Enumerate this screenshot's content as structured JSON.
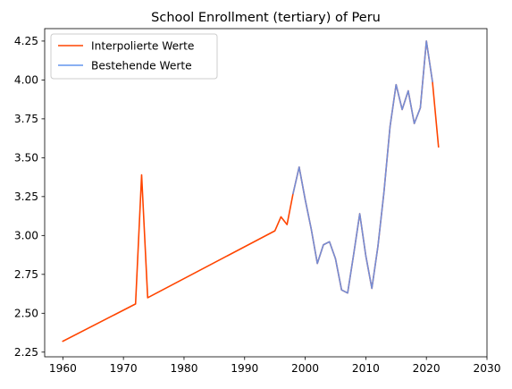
{
  "chart_data": {
    "type": "line",
    "title": "School Enrollment (tertiary) of Peru",
    "xlabel": "",
    "ylabel": "",
    "xlim": [
      1957,
      2030
    ],
    "ylim": [
      2.22,
      4.33
    ],
    "xticks": [
      1960,
      1970,
      1980,
      1990,
      2000,
      2010,
      2020,
      2030
    ],
    "yticks": [
      2.25,
      2.5,
      2.75,
      3.0,
      3.25,
      3.5,
      3.75,
      4.0,
      4.25
    ],
    "legend_position": "top-left",
    "grid": false,
    "series": [
      {
        "name": "Interpolierte Werte",
        "color": "#FF4500",
        "points": [
          [
            1960,
            2.32
          ],
          [
            1972,
            2.56
          ],
          [
            1973,
            3.39
          ],
          [
            1974,
            2.6
          ],
          [
            1995,
            3.03
          ],
          [
            1996,
            3.12
          ],
          [
            1997,
            3.07
          ],
          [
            1998,
            3.27
          ],
          [
            1999,
            3.44
          ],
          [
            2000,
            3.23
          ],
          [
            2001,
            3.04
          ],
          [
            2002,
            2.82
          ],
          [
            2003,
            2.94
          ],
          [
            2004,
            2.96
          ],
          [
            2005,
            2.85
          ],
          [
            2006,
            2.65
          ],
          [
            2007,
            2.63
          ],
          [
            2008,
            2.88
          ],
          [
            2009,
            3.14
          ],
          [
            2010,
            2.87
          ],
          [
            2011,
            2.66
          ],
          [
            2012,
            2.93
          ],
          [
            2013,
            3.28
          ],
          [
            2014,
            3.7
          ],
          [
            2015,
            3.97
          ],
          [
            2016,
            3.81
          ],
          [
            2017,
            3.93
          ],
          [
            2018,
            3.72
          ],
          [
            2019,
            3.82
          ],
          [
            2020,
            4.25
          ],
          [
            2021,
            3.99
          ],
          [
            2022,
            3.57
          ]
        ]
      },
      {
        "name": "Bestehende Werte",
        "color": "#6495ED",
        "points": [
          [
            1998,
            3.27
          ],
          [
            1999,
            3.44
          ],
          [
            2000,
            3.23
          ],
          [
            2001,
            3.04
          ],
          [
            2002,
            2.82
          ],
          [
            2003,
            2.94
          ],
          [
            2004,
            2.96
          ],
          [
            2005,
            2.85
          ],
          [
            2006,
            2.65
          ],
          [
            2007,
            2.63
          ],
          [
            2008,
            2.88
          ],
          [
            2009,
            3.14
          ],
          [
            2010,
            2.87
          ],
          [
            2011,
            2.66
          ],
          [
            2012,
            2.93
          ],
          [
            2013,
            3.28
          ],
          [
            2014,
            3.7
          ],
          [
            2015,
            3.97
          ],
          [
            2016,
            3.81
          ],
          [
            2017,
            3.93
          ],
          [
            2018,
            3.72
          ],
          [
            2019,
            3.82
          ],
          [
            2020,
            4.25
          ],
          [
            2021,
            3.99
          ]
        ]
      }
    ]
  }
}
